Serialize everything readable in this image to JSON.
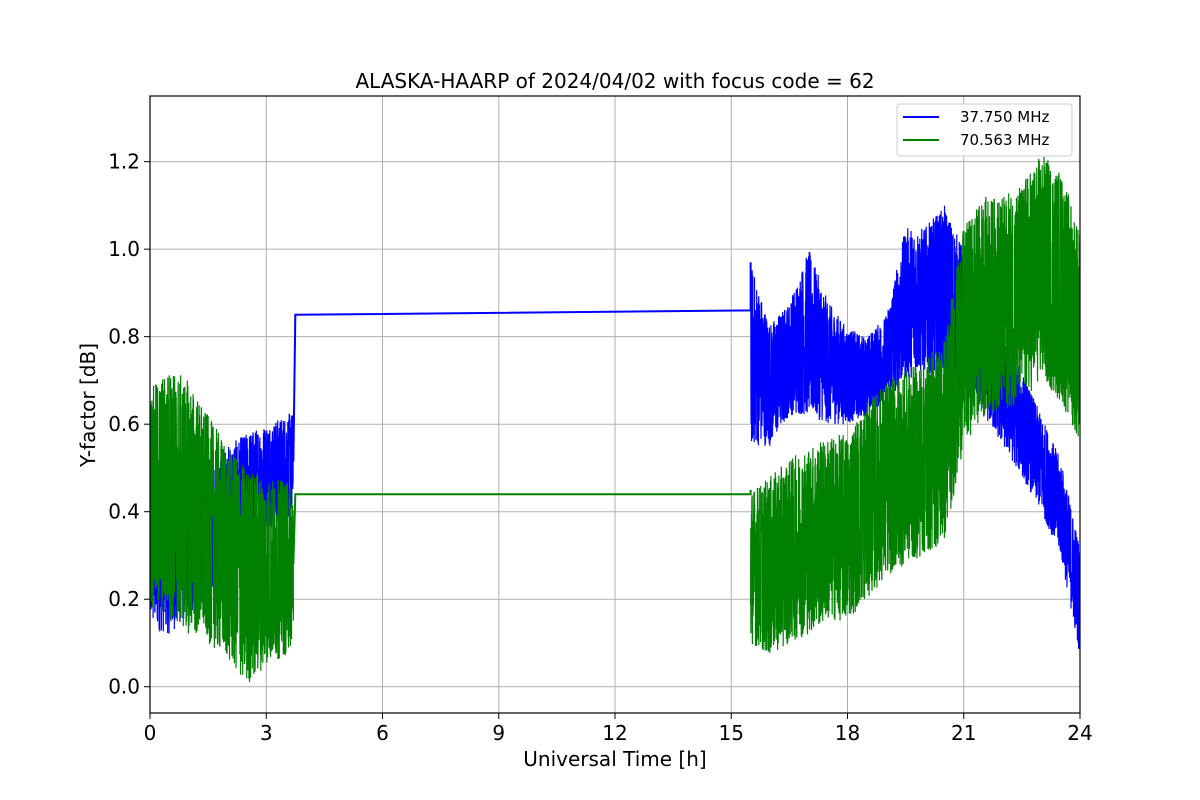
{
  "chart_data": {
    "type": "line",
    "title": "ALASKA-HAARP of 2024/04/02 with focus code = 62",
    "xlabel": "Universal Time [h]",
    "ylabel": "Y-factor [dB]",
    "xlim": [
      0,
      24
    ],
    "ylim": [
      -0.06,
      1.35
    ],
    "xticks": [
      0,
      3,
      6,
      9,
      12,
      15,
      18,
      21,
      24
    ],
    "yticks": [
      0.0,
      0.2,
      0.4,
      0.6,
      0.8,
      1.0,
      1.2
    ],
    "ytick_labels": [
      "0.0",
      "0.2",
      "0.4",
      "0.6",
      "0.8",
      "1.0",
      "1.2"
    ],
    "grid": true,
    "legend_position": "top-right",
    "colors": {
      "blue": "#0000ff",
      "green": "#008000"
    },
    "series": [
      {
        "name": "37.750 MHz",
        "color": "#0000ff",
        "envelope": [
          {
            "x": 0.0,
            "min": 0.13,
            "max": 0.55
          },
          {
            "x": 0.5,
            "min": 0.12,
            "max": 0.5
          },
          {
            "x": 1.0,
            "min": 0.16,
            "max": 0.48
          },
          {
            "x": 1.5,
            "min": 0.2,
            "max": 0.5
          },
          {
            "x": 2.0,
            "min": 0.28,
            "max": 0.55
          },
          {
            "x": 2.5,
            "min": 0.33,
            "max": 0.58
          },
          {
            "x": 3.0,
            "min": 0.36,
            "max": 0.6
          },
          {
            "x": 3.5,
            "min": 0.38,
            "max": 0.62
          },
          {
            "x": 3.7,
            "min": 0.4,
            "max": 0.63
          }
        ],
        "gap_line": [
          {
            "x": 3.75,
            "y": 0.85
          },
          {
            "x": 15.5,
            "y": 0.86
          }
        ],
        "envelope2": [
          {
            "x": 15.5,
            "min": 0.55,
            "max": 0.97
          },
          {
            "x": 16.0,
            "min": 0.55,
            "max": 0.83
          },
          {
            "x": 16.5,
            "min": 0.62,
            "max": 0.88
          },
          {
            "x": 17.0,
            "min": 0.62,
            "max": 1.0
          },
          {
            "x": 17.5,
            "min": 0.6,
            "max": 0.88
          },
          {
            "x": 18.0,
            "min": 0.6,
            "max": 0.82
          },
          {
            "x": 18.5,
            "min": 0.62,
            "max": 0.8
          },
          {
            "x": 19.0,
            "min": 0.65,
            "max": 0.85
          },
          {
            "x": 19.5,
            "min": 0.7,
            "max": 1.05
          },
          {
            "x": 20.0,
            "min": 0.72,
            "max": 1.05
          },
          {
            "x": 20.5,
            "min": 0.7,
            "max": 1.1
          },
          {
            "x": 21.0,
            "min": 0.68,
            "max": 1.0
          },
          {
            "x": 21.5,
            "min": 0.62,
            "max": 0.9
          },
          {
            "x": 22.0,
            "min": 0.55,
            "max": 0.8
          },
          {
            "x": 22.5,
            "min": 0.48,
            "max": 0.72
          },
          {
            "x": 23.0,
            "min": 0.4,
            "max": 0.62
          },
          {
            "x": 23.5,
            "min": 0.3,
            "max": 0.52
          },
          {
            "x": 24.0,
            "min": 0.07,
            "max": 0.32
          }
        ]
      },
      {
        "name": "70.563 MHz",
        "color": "#008000",
        "envelope": [
          {
            "x": 0.0,
            "min": 0.18,
            "max": 0.68
          },
          {
            "x": 0.5,
            "min": 0.15,
            "max": 0.73
          },
          {
            "x": 1.0,
            "min": 0.12,
            "max": 0.7
          },
          {
            "x": 1.5,
            "min": 0.1,
            "max": 0.62
          },
          {
            "x": 2.0,
            "min": 0.06,
            "max": 0.55
          },
          {
            "x": 2.5,
            "min": 0.0,
            "max": 0.5
          },
          {
            "x": 3.0,
            "min": 0.05,
            "max": 0.48
          },
          {
            "x": 3.5,
            "min": 0.07,
            "max": 0.47
          },
          {
            "x": 3.7,
            "min": 0.1,
            "max": 0.46
          }
        ],
        "gap_line": [
          {
            "x": 3.75,
            "y": 0.44
          },
          {
            "x": 15.5,
            "y": 0.44
          }
        ],
        "envelope2": [
          {
            "x": 15.5,
            "min": 0.1,
            "max": 0.45
          },
          {
            "x": 16.0,
            "min": 0.07,
            "max": 0.48
          },
          {
            "x": 16.5,
            "min": 0.1,
            "max": 0.52
          },
          {
            "x": 17.0,
            "min": 0.12,
            "max": 0.55
          },
          {
            "x": 17.5,
            "min": 0.15,
            "max": 0.57
          },
          {
            "x": 18.0,
            "min": 0.15,
            "max": 0.58
          },
          {
            "x": 18.5,
            "min": 0.2,
            "max": 0.65
          },
          {
            "x": 19.0,
            "min": 0.25,
            "max": 0.7
          },
          {
            "x": 19.5,
            "min": 0.28,
            "max": 0.72
          },
          {
            "x": 20.0,
            "min": 0.3,
            "max": 0.75
          },
          {
            "x": 20.5,
            "min": 0.33,
            "max": 0.8
          },
          {
            "x": 21.0,
            "min": 0.55,
            "max": 1.05
          },
          {
            "x": 21.5,
            "min": 0.62,
            "max": 1.12
          },
          {
            "x": 22.0,
            "min": 0.63,
            "max": 1.12
          },
          {
            "x": 22.5,
            "min": 0.65,
            "max": 1.15
          },
          {
            "x": 23.0,
            "min": 0.7,
            "max": 1.22
          },
          {
            "x": 23.5,
            "min": 0.65,
            "max": 1.18
          },
          {
            "x": 24.0,
            "min": 0.56,
            "max": 1.05
          }
        ]
      }
    ]
  }
}
